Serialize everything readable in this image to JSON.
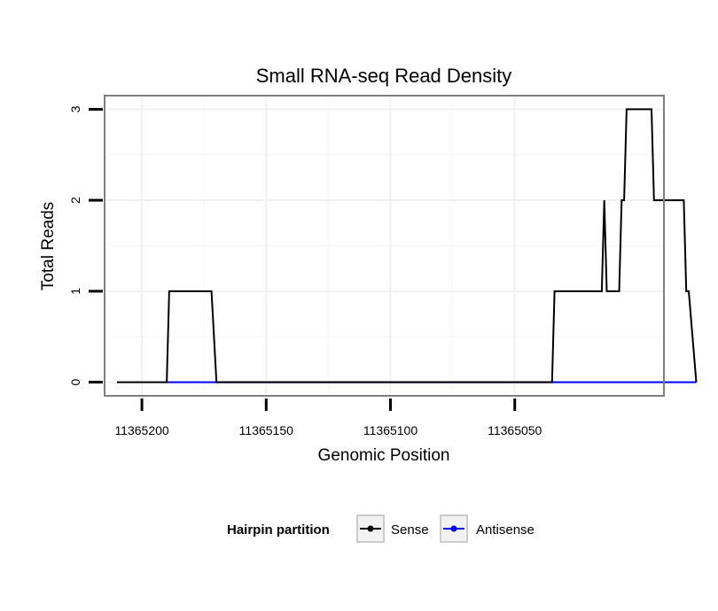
{
  "chart_data": {
    "type": "line",
    "title": "Small RNA-seq Read Density",
    "xlabel": "Genomic Position",
    "ylabel": "Total Reads",
    "xlim": [
      11365215,
      11364990
    ],
    "ylim": [
      -0.15,
      3.15
    ],
    "x_reversed": true,
    "x_ticks": [
      11365200,
      11365150,
      11365100,
      11365050
    ],
    "x_tick_labels": [
      "11365200",
      "11365150",
      "11365100",
      "11365050"
    ],
    "y_ticks": [
      0,
      1,
      2,
      3
    ],
    "y_tick_labels": [
      "0",
      "1",
      "2",
      "3"
    ],
    "grid": true,
    "legend": {
      "title": "Hairpin partition",
      "position": "bottom",
      "entries": [
        "Sense",
        "Antisense"
      ]
    },
    "series": [
      {
        "name": "Sense",
        "color": "#000000",
        "x": [
          11365210,
          11365190,
          11365189,
          11365172,
          11365170,
          11365035,
          11365034,
          11365015,
          11365014,
          11365013,
          11365012,
          11365008,
          11365007,
          11365006,
          11365005,
          11364995,
          11364994,
          11364982,
          11364981,
          11364980,
          11364977
        ],
        "y": [
          0,
          0,
          1,
          1,
          0,
          0,
          1,
          1,
          2,
          1,
          1,
          1,
          2,
          2,
          3,
          3,
          2,
          2,
          1,
          1,
          0
        ]
      },
      {
        "name": "Antisense",
        "color": "#0000ff",
        "x": [
          11365190,
          11365170,
          11365035,
          11364977
        ],
        "y": [
          0,
          0,
          0,
          0
        ]
      }
    ]
  }
}
